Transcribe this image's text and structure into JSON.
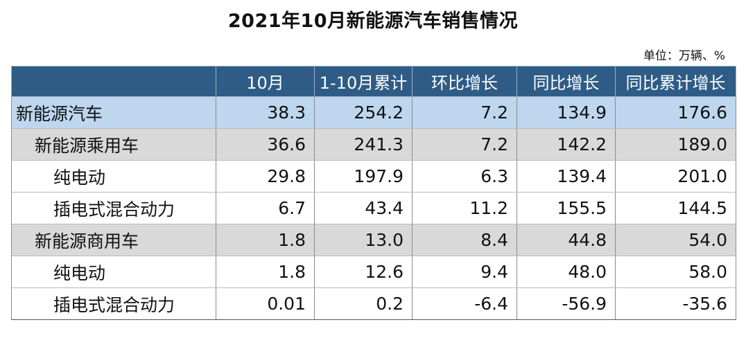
{
  "title": "2021年10月新能源汽车销售情况",
  "unit": "单位：万辆、%",
  "chart_data": {
    "type": "table",
    "columns": [
      "",
      "10月",
      "1-10月累计",
      "环比增长",
      "同比增长",
      "同比累计增长"
    ],
    "rows": [
      {
        "name": "新能源汽车",
        "level": 0,
        "values": [
          "38.3",
          "254.2",
          "7.2",
          "134.9",
          "176.6"
        ]
      },
      {
        "name": "新能源乘用车",
        "level": 1,
        "values": [
          "36.6",
          "241.3",
          "7.2",
          "142.2",
          "189.0"
        ]
      },
      {
        "name": "纯电动",
        "level": 2,
        "values": [
          "29.8",
          "197.9",
          "6.3",
          "139.4",
          "201.0"
        ]
      },
      {
        "name": "插电式混合动力",
        "level": 2,
        "values": [
          "6.7",
          "43.4",
          "11.2",
          "155.5",
          "144.5"
        ]
      },
      {
        "name": "新能源商用车",
        "level": 1,
        "values": [
          "1.8",
          "13.0",
          "8.4",
          "44.8",
          "54.0"
        ]
      },
      {
        "name": "纯电动",
        "level": 2,
        "values": [
          "1.8",
          "12.6",
          "9.4",
          "48.0",
          "58.0"
        ]
      },
      {
        "name": "插电式混合动力",
        "level": 2,
        "values": [
          "0.01",
          "0.2",
          "-6.4",
          "-56.9",
          "-35.6"
        ]
      }
    ]
  },
  "colors": {
    "header_bg": "#2e5c86",
    "total_row_bg": "#bed7ee",
    "subtotal_row_bg": "#d9d9d9",
    "detail_row_bg": "#ffffff"
  }
}
